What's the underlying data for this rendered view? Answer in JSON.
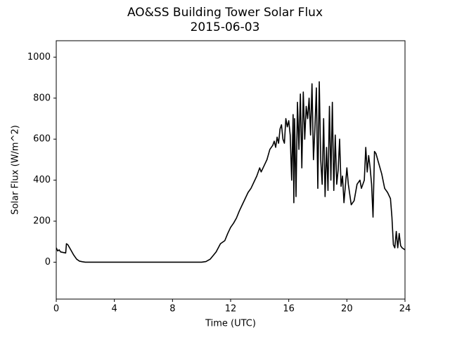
{
  "chart_data": {
    "type": "line",
    "title": "AO&SS Building Tower Solar Flux",
    "subtitle": "2015-06-03",
    "xlabel": "Time (UTC)",
    "ylabel": "Solar Flux (W/m^2)",
    "xlim": [
      0,
      24
    ],
    "xticks": [
      0,
      4,
      8,
      12,
      16,
      20,
      24
    ],
    "ylim": [
      -180,
      1080
    ],
    "yticks": [
      0,
      200,
      400,
      600,
      800,
      1000
    ],
    "grid": false,
    "series": [
      {
        "color": "#000000",
        "x": [
          0,
          0.1,
          0.2,
          0.3,
          0.5,
          0.65,
          0.7,
          0.8,
          1.0,
          1.2,
          1.4,
          1.6,
          1.8,
          2.0,
          4,
          8,
          10,
          10.3,
          10.6,
          11,
          11.3,
          11.6,
          11.8,
          12,
          12.2,
          12.4,
          12.6,
          12.8,
          13,
          13.2,
          13.4,
          13.6,
          13.8,
          14,
          14.1,
          14.3,
          14.5,
          14.7,
          14.9,
          15,
          15.1,
          15.2,
          15.3,
          15.4,
          15.5,
          15.6,
          15.7,
          15.8,
          15.9,
          16.0,
          16.1,
          16.2,
          16.3,
          16.35,
          16.4,
          16.5,
          16.6,
          16.7,
          16.8,
          16.9,
          17.0,
          17.1,
          17.2,
          17.3,
          17.4,
          17.5,
          17.6,
          17.7,
          17.8,
          17.9,
          18.0,
          18.1,
          18.2,
          18.3,
          18.4,
          18.5,
          18.6,
          18.7,
          18.8,
          18.9,
          19.0,
          19.1,
          19.2,
          19.3,
          19.4,
          19.5,
          19.6,
          19.7,
          19.8,
          20.0,
          20.1,
          20.3,
          20.5,
          20.7,
          20.9,
          21.0,
          21.2,
          21.3,
          21.4,
          21.5,
          21.6,
          21.7,
          21.8,
          21.9,
          22.0,
          22.2,
          22.4,
          22.6,
          22.8,
          23.0,
          23.1,
          23.2,
          23.3,
          23.4,
          23.5,
          23.6,
          23.7,
          23.8,
          24
        ],
        "values": [
          70,
          55,
          60,
          50,
          47,
          45,
          90,
          85,
          60,
          35,
          15,
          5,
          2,
          0,
          0,
          0,
          0,
          3,
          15,
          50,
          90,
          105,
          140,
          170,
          190,
          215,
          250,
          280,
          310,
          340,
          360,
          390,
          420,
          460,
          440,
          470,
          500,
          550,
          570,
          590,
          560,
          610,
          580,
          650,
          670,
          600,
          580,
          700,
          660,
          690,
          620,
          400,
          720,
          290,
          700,
          320,
          780,
          550,
          820,
          460,
          830,
          600,
          760,
          700,
          800,
          620,
          870,
          500,
          650,
          850,
          360,
          880,
          500,
          380,
          700,
          320,
          560,
          350,
          760,
          400,
          780,
          350,
          620,
          380,
          450,
          600,
          370,
          420,
          290,
          460,
          380,
          280,
          300,
          380,
          400,
          360,
          400,
          560,
          440,
          520,
          460,
          380,
          220,
          540,
          530,
          480,
          430,
          360,
          340,
          310,
          220,
          85,
          70,
          150,
          70,
          140,
          80,
          70,
          60
        ]
      }
    ]
  }
}
